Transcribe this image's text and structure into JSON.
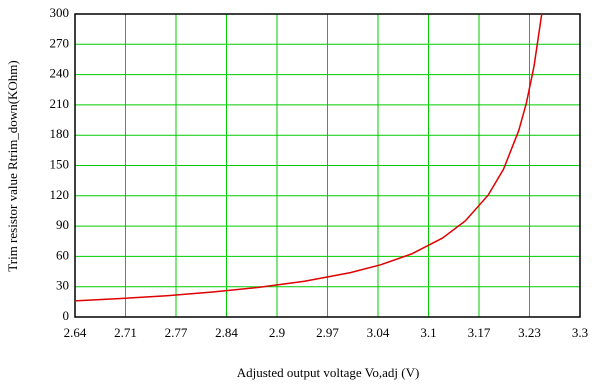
{
  "chart_data": {
    "type": "line",
    "x_label": "Adjusted output voltage Vo,adj (V)",
    "y_label": "Trim resistor value Rtrim_down(KOhm)",
    "xlim": [
      2.64,
      3.3
    ],
    "xticks": [
      2.64,
      {
        "value": 2.706,
        "label": "2.71"
      },
      {
        "value": 2.772,
        "label": "2.77"
      },
      {
        "value": 2.838,
        "label": "2.84"
      },
      {
        "value": 2.904,
        "label": "2.9"
      },
      2.97,
      {
        "value": 3.036,
        "label": "3.04"
      },
      {
        "value": 3.102,
        "label": "3.1"
      },
      {
        "value": 3.168,
        "label": "3.17"
      },
      {
        "value": 3.234,
        "label": "3.23"
      },
      3.3
    ],
    "ylim": [
      0,
      300
    ],
    "yticks": [
      0,
      30,
      60,
      90,
      120,
      150,
      180,
      210,
      240,
      270,
      300
    ],
    "grid": true,
    "grid_color": "#00cc00",
    "series": [
      {
        "color": "#e00000",
        "x": [
          2.64,
          2.7,
          2.76,
          2.82,
          2.88,
          2.94,
          3.0,
          3.04,
          3.08,
          3.12,
          3.15,
          3.18,
          3.2,
          3.22,
          3.23,
          3.24,
          3.25
        ],
        "values": [
          16.0,
          18.3,
          21.1,
          24.7,
          29.3,
          35.4,
          43.9,
          51.8,
          62.5,
          78.0,
          95.1,
          120.7,
          146.3,
          184.7,
          212.1,
          248.7,
          300
        ]
      }
    ]
  }
}
